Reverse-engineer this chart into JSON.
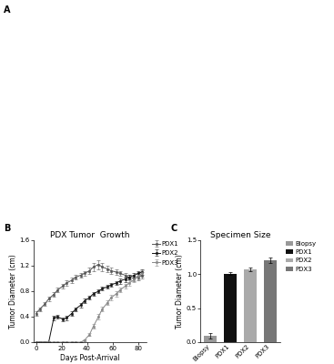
{
  "panel_b": {
    "title": "PDX Tumor  Growth",
    "xlabel": "Days Post-Arrival",
    "ylabel": "Tumor Diameter (cm)",
    "ylim": [
      0,
      1.6
    ],
    "yticks": [
      0.0,
      0.4,
      0.8,
      1.2,
      1.6
    ],
    "xlim": [
      -2,
      87
    ],
    "xticks": [
      0,
      20,
      40,
      60,
      80
    ],
    "pdx1": {
      "x": [
        0,
        3,
        7,
        10,
        14,
        17,
        21,
        24,
        28,
        31,
        35,
        38,
        42,
        45,
        49,
        52,
        56,
        59,
        63,
        66,
        70,
        73,
        77,
        80,
        83
      ],
      "y": [
        0.45,
        0.52,
        0.6,
        0.68,
        0.75,
        0.82,
        0.88,
        0.93,
        0.97,
        1.02,
        1.05,
        1.08,
        1.12,
        1.18,
        1.22,
        1.18,
        1.15,
        1.12,
        1.1,
        1.08,
        1.05,
        1.02,
        1.0,
        1.02,
        1.05
      ],
      "yerr": [
        0.03,
        0.03,
        0.03,
        0.03,
        0.04,
        0.04,
        0.04,
        0.04,
        0.04,
        0.04,
        0.04,
        0.04,
        0.05,
        0.06,
        0.07,
        0.06,
        0.05,
        0.05,
        0.04,
        0.04,
        0.04,
        0.04,
        0.04,
        0.05,
        0.05
      ],
      "color": "#555555",
      "marker": "s",
      "label": "PDX1",
      "linestyle": "-"
    },
    "pdx2": {
      "x": [
        0,
        3,
        7,
        10,
        14,
        17,
        21,
        24,
        28,
        31,
        35,
        38,
        42,
        45,
        49,
        52,
        56,
        59,
        63,
        66,
        70,
        73,
        77,
        80,
        83
      ],
      "y": [
        0.0,
        0.0,
        0.0,
        0.0,
        0.38,
        0.4,
        0.36,
        0.38,
        0.45,
        0.52,
        0.58,
        0.65,
        0.7,
        0.76,
        0.8,
        0.84,
        0.87,
        0.9,
        0.93,
        0.96,
        0.99,
        1.02,
        1.05,
        1.08,
        1.1
      ],
      "yerr": [
        0.005,
        0.005,
        0.005,
        0.005,
        0.03,
        0.03,
        0.03,
        0.03,
        0.03,
        0.03,
        0.03,
        0.03,
        0.03,
        0.03,
        0.03,
        0.03,
        0.03,
        0.03,
        0.03,
        0.04,
        0.04,
        0.04,
        0.04,
        0.04,
        0.04
      ],
      "color": "#111111",
      "marker": "s",
      "label": "PDX2",
      "linestyle": "-"
    },
    "pdx3": {
      "x": [
        0,
        3,
        7,
        10,
        14,
        17,
        21,
        24,
        28,
        31,
        35,
        38,
        42,
        45,
        49,
        52,
        56,
        59,
        63,
        66,
        70,
        73,
        77,
        80,
        83
      ],
      "y": [
        0.0,
        0.0,
        0.0,
        0.0,
        0.0,
        0.0,
        0.0,
        0.0,
        0.0,
        0.0,
        0.0,
        0.03,
        0.12,
        0.25,
        0.4,
        0.52,
        0.62,
        0.7,
        0.76,
        0.82,
        0.88,
        0.93,
        0.98,
        1.04,
        1.08
      ],
      "yerr": [
        0.002,
        0.002,
        0.002,
        0.002,
        0.002,
        0.002,
        0.002,
        0.002,
        0.002,
        0.002,
        0.002,
        0.01,
        0.02,
        0.03,
        0.04,
        0.04,
        0.04,
        0.04,
        0.04,
        0.04,
        0.04,
        0.04,
        0.04,
        0.05,
        0.05
      ],
      "color": "#888888",
      "marker": "s",
      "label": "PDX3",
      "linestyle": "-"
    }
  },
  "panel_c": {
    "title": "Specimen Size",
    "xlabel": "",
    "ylabel": "Tumor Diameter (cm)",
    "ylim": [
      0,
      1.5
    ],
    "yticks": [
      0.0,
      0.5,
      1.0,
      1.5
    ],
    "categories": [
      "Biopsy",
      "PDX1",
      "PDX2",
      "PDX3"
    ],
    "values": [
      0.1,
      1.01,
      1.07,
      1.2
    ],
    "errors": [
      0.04,
      0.02,
      0.03,
      0.04
    ],
    "colors": [
      "#999999",
      "#111111",
      "#aaaaaa",
      "#777777"
    ]
  },
  "background": "#ffffff",
  "label_fontsize": 5.5,
  "title_fontsize": 6.5,
  "tick_fontsize": 5,
  "legend_fontsize": 5
}
